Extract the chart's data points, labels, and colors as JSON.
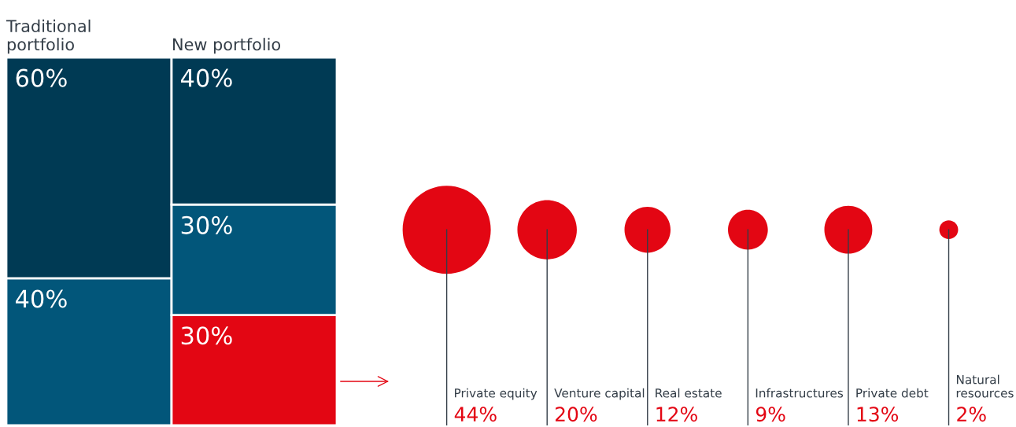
{
  "chart_data": [
    {
      "type": "bar",
      "stacked": true,
      "categories": [
        "Traditional\nportfolio",
        "New portfolio"
      ],
      "series": [
        {
          "colors": [
            "#02567a",
            "#e30613"
          ],
          "values": [
            40,
            30
          ],
          "value_labels": [
            "40%",
            "30%"
          ]
        },
        {
          "colors": [
            "#003a54",
            "#02567a"
          ],
          "values": [
            60,
            30
          ],
          "value_labels": [
            "60%",
            "30%"
          ]
        },
        {
          "colors": [
            "#003a54",
            "#003a54"
          ],
          "values": [
            null,
            40
          ],
          "value_labels": [
            null,
            "40%"
          ]
        }
      ]
    },
    {
      "type": "other",
      "color": "#e30613",
      "categories": [
        "Private equity",
        "Venture capital",
        "Real estate",
        "Infrastructures",
        "Private debt",
        "Natural\nresources"
      ],
      "values": [
        44,
        20,
        12,
        9,
        13,
        2
      ],
      "value_labels": [
        "44%",
        "20%",
        "12%",
        "9%",
        "13%",
        "2%"
      ]
    }
  ]
}
